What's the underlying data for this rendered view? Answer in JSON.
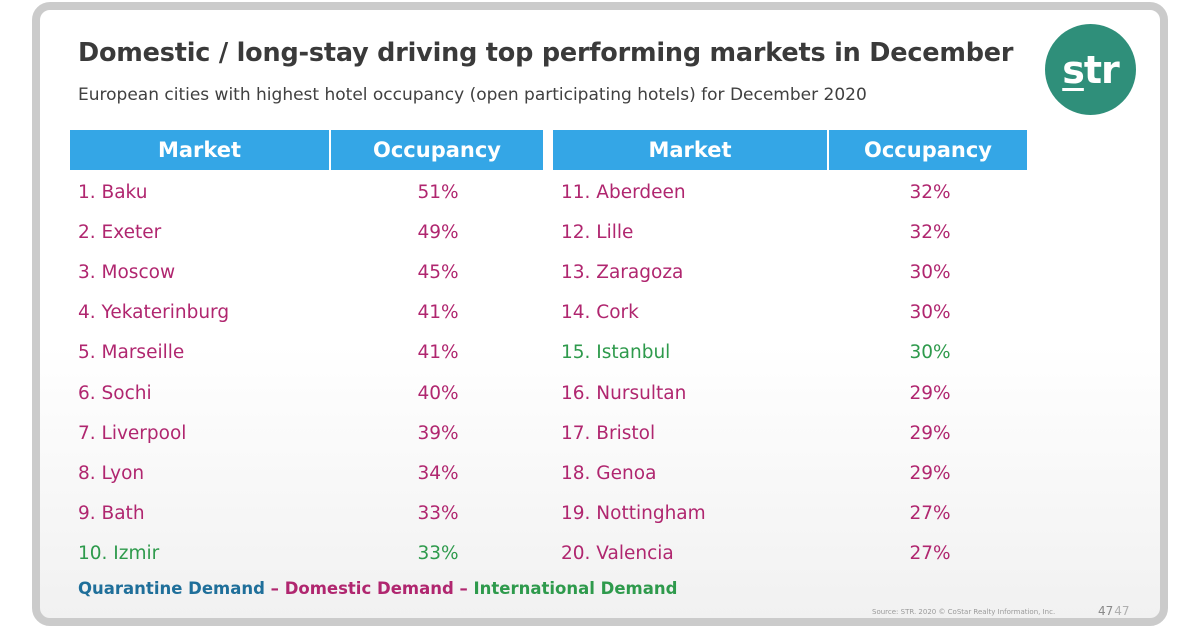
{
  "header": {
    "title": "Domestic / long-stay driving top performing markets in December",
    "subtitle": "European cities with highest hotel occupancy (open participating hotels) for December 2020"
  },
  "logo": {
    "text_s": "s",
    "text_rest": "tr"
  },
  "colors": {
    "header_bg": "#34a6e6",
    "quarantine": "#1f6f9a",
    "domestic": "#b0266f",
    "international": "#2e9a4c",
    "logo_bg": "#2f8f7a"
  },
  "table": {
    "col_market": "Market",
    "col_occupancy": "Occupancy",
    "left_rows": [
      {
        "market": "1. Baku",
        "occupancy": "51%",
        "type": "domestic"
      },
      {
        "market": "2. Exeter",
        "occupancy": "49%",
        "type": "domestic"
      },
      {
        "market": "3. Moscow",
        "occupancy": "45%",
        "type": "domestic"
      },
      {
        "market": "4. Yekaterinburg",
        "occupancy": "41%",
        "type": "domestic"
      },
      {
        "market": "5. Marseille",
        "occupancy": "41%",
        "type": "domestic"
      },
      {
        "market": "6. Sochi",
        "occupancy": "40%",
        "type": "domestic"
      },
      {
        "market": "7. Liverpool",
        "occupancy": "39%",
        "type": "domestic"
      },
      {
        "market": "8. Lyon",
        "occupancy": "34%",
        "type": "domestic"
      },
      {
        "market": "9. Bath",
        "occupancy": "33%",
        "type": "domestic"
      },
      {
        "market": "10. Izmir",
        "occupancy": "33%",
        "type": "international"
      }
    ],
    "right_rows": [
      {
        "market": "11. Aberdeen",
        "occupancy": "32%",
        "type": "domestic"
      },
      {
        "market": "12. Lille",
        "occupancy": "32%",
        "type": "domestic"
      },
      {
        "market": "13. Zaragoza",
        "occupancy": "30%",
        "type": "domestic"
      },
      {
        "market": "14. Cork",
        "occupancy": "30%",
        "type": "domestic"
      },
      {
        "market": "15. Istanbul",
        "occupancy": "30%",
        "type": "international"
      },
      {
        "market": "16. Nursultan",
        "occupancy": "29%",
        "type": "domestic"
      },
      {
        "market": "17. Bristol",
        "occupancy": "29%",
        "type": "domestic"
      },
      {
        "market": "18. Genoa",
        "occupancy": "29%",
        "type": "domestic"
      },
      {
        "market": "19. Nottingham",
        "occupancy": "27%",
        "type": "domestic"
      },
      {
        "market": "20. Valencia",
        "occupancy": "27%",
        "type": "domestic"
      }
    ]
  },
  "legend": {
    "quarantine": "Quarantine Demand",
    "sep1": " – ",
    "domestic": "Domestic Demand",
    "sep2": " – ",
    "international": "International Demand"
  },
  "footer": {
    "source": "Source: STR. 2020 © CoStar Realty Information, Inc.",
    "page_small": "47",
    "page_large": "47"
  }
}
